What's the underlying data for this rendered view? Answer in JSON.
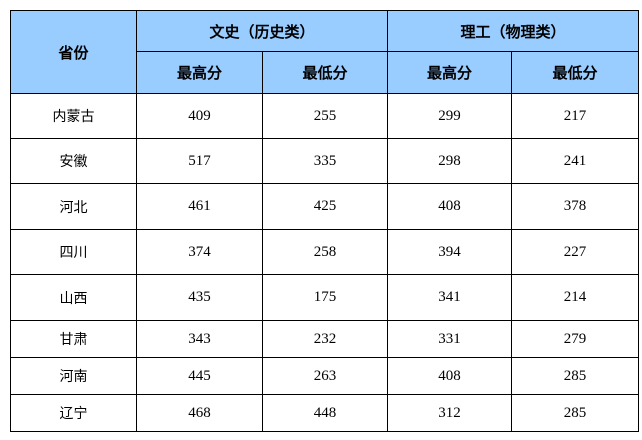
{
  "header": {
    "province": "省份",
    "groups": [
      {
        "label": "文史（历史类）",
        "cols": [
          "最高分",
          "最低分"
        ]
      },
      {
        "label": "理工（物理类）",
        "cols": [
          "最高分",
          "最低分"
        ]
      }
    ]
  },
  "rows": [
    {
      "province": "内蒙古",
      "values": [
        "409",
        "255",
        "299",
        "217"
      ]
    },
    {
      "province": "安徽",
      "values": [
        "517",
        "335",
        "298",
        "241"
      ]
    },
    {
      "province": "河北",
      "values": [
        "461",
        "425",
        "408",
        "378"
      ]
    },
    {
      "province": "四川",
      "values": [
        "374",
        "258",
        "394",
        "227"
      ]
    },
    {
      "province": "山西",
      "values": [
        "435",
        "175",
        "341",
        "214"
      ]
    },
    {
      "province": "甘肃",
      "values": [
        "343",
        "232",
        "331",
        "279"
      ]
    },
    {
      "province": "河南",
      "values": [
        "445",
        "263",
        "408",
        "285"
      ]
    },
    {
      "province": "辽宁",
      "values": [
        "468",
        "448",
        "312",
        "285"
      ]
    }
  ],
  "colors": {
    "header_bg": "#99ccff",
    "border": "#000000"
  }
}
